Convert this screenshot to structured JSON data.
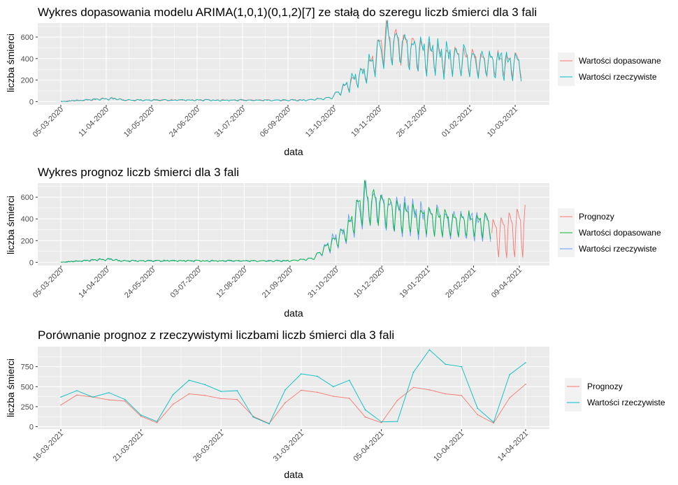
{
  "chart_data": [
    {
      "type": "line",
      "title": "Wykres dopasowania modelu ARIMA(1,0,1)(0,1,2)[7] ze stałą do szeregu liczb śmierci dla 3 fali",
      "xlabel": "data",
      "ylabel": "liczba śmierci",
      "x_tick_labels": [
        "05-03-2020",
        "11-04-2020",
        "18-05-2020",
        "24-06-2020",
        "31-07-2020",
        "06-09-2020",
        "13-10-2020",
        "19-11-2020",
        "26-12-2020",
        "01-02-2021",
        "10-03-2021"
      ],
      "y_ticks": [
        0,
        200,
        400,
        600
      ],
      "ylim": [
        -30,
        730
      ],
      "x_range": [
        "2020-03-05",
        "2021-03-16"
      ],
      "legend_position": "right",
      "grid": true,
      "series": [
        {
          "name": "Wartości dopasowane",
          "color": "#F8766D",
          "segment": [
            "2020-03-05",
            "2021-03-16"
          ],
          "peak": {
            "date": "2020-11-14",
            "value": 705
          }
        },
        {
          "name": "Wartości rzeczywiste",
          "color": "#00BFC4",
          "segment": [
            "2020-03-05",
            "2021-03-16"
          ],
          "peak": {
            "date": "2020-11-16",
            "value": 670
          }
        }
      ]
    },
    {
      "type": "line",
      "title": "Wykres prognoz liczb śmierci dla 3 fali",
      "xlabel": "data",
      "ylabel": "liczba śmierci",
      "x_tick_labels": [
        "05-03-2020",
        "14-04-2020",
        "24-05-2020",
        "03-07-2020",
        "12-08-2020",
        "21-09-2020",
        "31-10-2020",
        "10-12-2020",
        "19-01-2021",
        "28-02-2021",
        "09-04-2021"
      ],
      "y_ticks": [
        0,
        200,
        400,
        600
      ],
      "ylim": [
        -30,
        730
      ],
      "x_range": [
        "2020-03-05",
        "2021-04-14"
      ],
      "legend_position": "right",
      "grid": true,
      "series": [
        {
          "name": "Prognozy",
          "color": "#F8766D",
          "segment": [
            "2021-03-16",
            "2021-04-14"
          ],
          "peak": {
            "date": "2021-04-14",
            "value": 545
          }
        },
        {
          "name": "Wartości dopasowane",
          "color": "#00BA38",
          "segment": [
            "2020-03-05",
            "2021-03-15"
          ],
          "peak": {
            "date": "2020-11-14",
            "value": 705
          }
        },
        {
          "name": "Wartości rzeczywiste",
          "color": "#619CFF",
          "segment": [
            "2020-03-05",
            "2021-03-15"
          ],
          "peak": {
            "date": "2020-11-16",
            "value": 670
          }
        }
      ]
    },
    {
      "type": "line",
      "title": "Porównanie prognoz z rzeczywistymi liczbami liczb śmierci dla 3 fali",
      "xlabel": "data",
      "ylabel": "liczba śmierci",
      "x_tick_labels": [
        "16-03-2021",
        "21-03-2021",
        "26-03-2021",
        "31-03-2021",
        "05-04-2021",
        "10-04-2021",
        "14-04-2021"
      ],
      "y_ticks": [
        0,
        250,
        500,
        750
      ],
      "ylim": [
        -30,
        1000
      ],
      "x_range": [
        "2021-03-16",
        "2021-04-14"
      ],
      "legend_position": "right",
      "grid": true,
      "x_dates": [
        "2021-03-16",
        "2021-03-17",
        "2021-03-18",
        "2021-03-19",
        "2021-03-20",
        "2021-03-21",
        "2021-03-22",
        "2021-03-23",
        "2021-03-24",
        "2021-03-25",
        "2021-03-26",
        "2021-03-27",
        "2021-03-28",
        "2021-03-29",
        "2021-03-30",
        "2021-03-31",
        "2021-04-01",
        "2021-04-02",
        "2021-04-03",
        "2021-04-04",
        "2021-04-05",
        "2021-04-06",
        "2021-04-07",
        "2021-04-08",
        "2021-04-09",
        "2021-04-10",
        "2021-04-11",
        "2021-04-12",
        "2021-04-13",
        "2021-04-14"
      ],
      "series": [
        {
          "name": "Prognozy",
          "color": "#F8766D",
          "values": [
            270,
            395,
            370,
            335,
            320,
            130,
            50,
            280,
            410,
            390,
            350,
            340,
            130,
            40,
            300,
            455,
            430,
            380,
            355,
            120,
            50,
            330,
            490,
            460,
            410,
            390,
            150,
            45,
            360,
            530
          ]
        },
        {
          "name": "Wartości rzeczywiste",
          "color": "#00BFC4",
          "values": [
            370,
            450,
            370,
            425,
            340,
            145,
            65,
            400,
            580,
            525,
            440,
            450,
            120,
            35,
            460,
            660,
            630,
            500,
            580,
            210,
            60,
            65,
            680,
            960,
            780,
            750,
            230,
            55,
            650,
            800
          ]
        }
      ]
    }
  ]
}
